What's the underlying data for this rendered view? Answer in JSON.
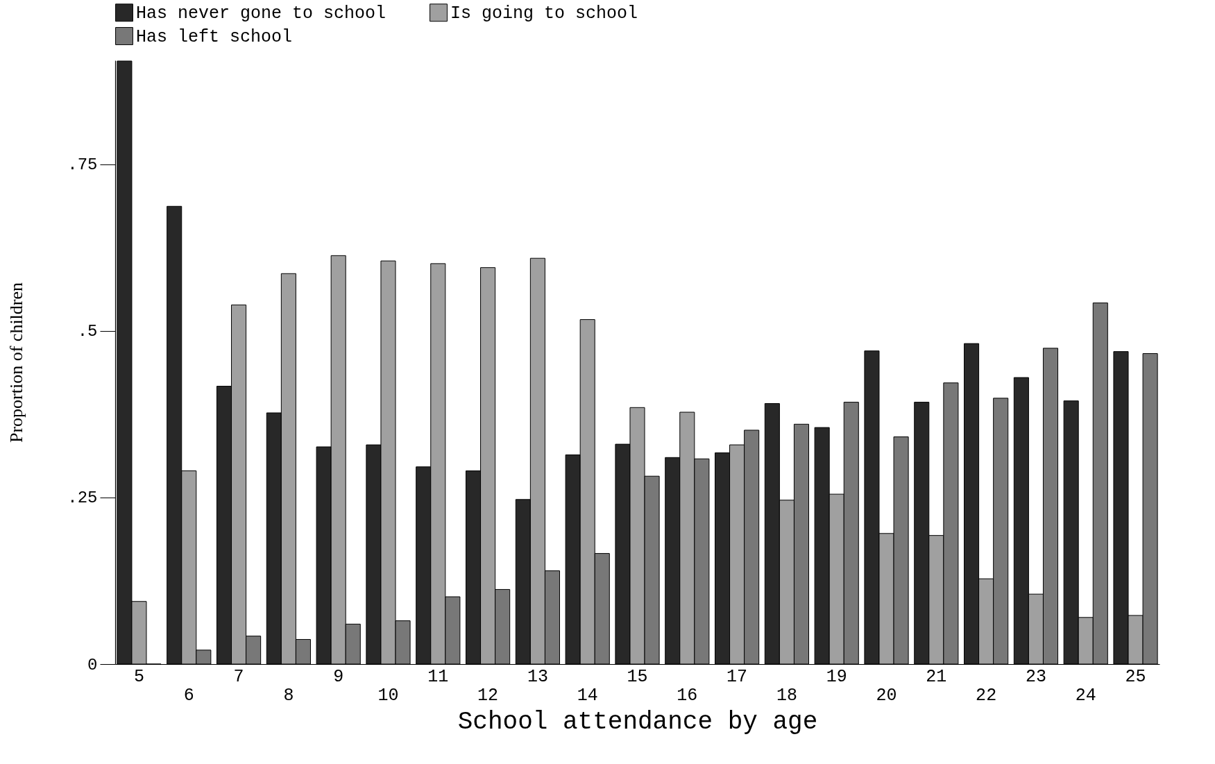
{
  "chart_data": {
    "type": "bar",
    "xlabel": "School attendance by age",
    "ylabel": "Proportion of children",
    "categories": [
      "5",
      "6",
      "7",
      "8",
      "9",
      "10",
      "11",
      "12",
      "13",
      "14",
      "15",
      "16",
      "17",
      "18",
      "19",
      "20",
      "21",
      "22",
      "23",
      "24",
      "25"
    ],
    "series": [
      {
        "name": "Has never gone to school",
        "color": "#282828",
        "values": [
          0.905,
          0.687,
          0.417,
          0.377,
          0.326,
          0.329,
          0.296,
          0.29,
          0.247,
          0.314,
          0.33,
          0.31,
          0.317,
          0.391,
          0.355,
          0.47,
          0.393,
          0.481,
          0.43,
          0.395,
          0.469
        ]
      },
      {
        "name": "Is going to school",
        "color": "#a0a0a0",
        "values": [
          0.094,
          0.29,
          0.539,
          0.586,
          0.613,
          0.605,
          0.601,
          0.595,
          0.609,
          0.517,
          0.385,
          0.378,
          0.329,
          0.246,
          0.255,
          0.196,
          0.193,
          0.128,
          0.105,
          0.07,
          0.073
        ]
      },
      {
        "name": "Has left school",
        "color": "#787878",
        "values": [
          0,
          0.021,
          0.042,
          0.037,
          0.06,
          0.065,
          0.101,
          0.112,
          0.14,
          0.166,
          0.282,
          0.308,
          0.351,
          0.36,
          0.393,
          0.341,
          0.422,
          0.399,
          0.474,
          0.542,
          0.466
        ]
      }
    ],
    "ylim": [
      0,
      0.906
    ],
    "yticks": [
      0,
      {
        "value": 0.25,
        "label": ".25"
      },
      {
        "value": 0.5,
        "label": ".5"
      },
      {
        "value": 0.75,
        "label": ".75"
      }
    ],
    "legend": "top",
    "grid": false
  }
}
